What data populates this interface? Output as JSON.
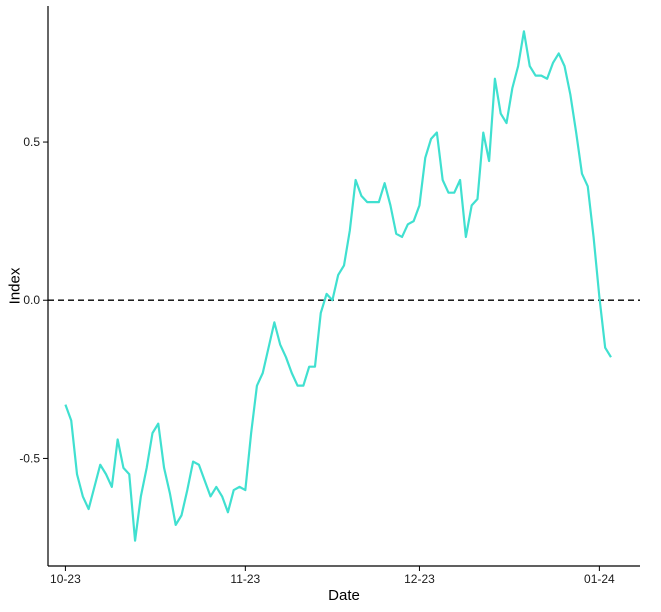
{
  "chart_data": {
    "type": "line",
    "title": "",
    "xlabel": "Date",
    "ylabel": "Index",
    "x_ticks": [
      {
        "value": "2023-10-01",
        "label": "10-23"
      },
      {
        "value": "2023-11-01",
        "label": "11-23"
      },
      {
        "value": "2023-12-01",
        "label": "12-23"
      },
      {
        "value": "2024-01-01",
        "label": "01-24"
      }
    ],
    "y_ticks": [
      {
        "value": -0.5,
        "label": "-0.5"
      },
      {
        "value": 0.0,
        "label": "0.0"
      },
      {
        "value": 0.5,
        "label": "0.5"
      }
    ],
    "xlim": [
      "2023-09-28",
      "2024-01-08"
    ],
    "ylim": [
      -0.84,
      0.93
    ],
    "grid": false,
    "reference_line": {
      "y": 0.0,
      "style": "dashed"
    },
    "series": [
      {
        "color": "#40E0D0",
        "points": [
          [
            "2023-10-01",
            -0.33
          ],
          [
            "2023-10-02",
            -0.38
          ],
          [
            "2023-10-03",
            -0.55
          ],
          [
            "2023-10-04",
            -0.62
          ],
          [
            "2023-10-05",
            -0.66
          ],
          [
            "2023-10-06",
            -0.59
          ],
          [
            "2023-10-07",
            -0.52
          ],
          [
            "2023-10-08",
            -0.55
          ],
          [
            "2023-10-09",
            -0.59
          ],
          [
            "2023-10-10",
            -0.44
          ],
          [
            "2023-10-11",
            -0.53
          ],
          [
            "2023-10-12",
            -0.55
          ],
          [
            "2023-10-13",
            -0.76
          ],
          [
            "2023-10-14",
            -0.62
          ],
          [
            "2023-10-15",
            -0.53
          ],
          [
            "2023-10-16",
            -0.42
          ],
          [
            "2023-10-17",
            -0.39
          ],
          [
            "2023-10-18",
            -0.53
          ],
          [
            "2023-10-19",
            -0.61
          ],
          [
            "2023-10-20",
            -0.71
          ],
          [
            "2023-10-21",
            -0.68
          ],
          [
            "2023-10-22",
            -0.6
          ],
          [
            "2023-10-23",
            -0.51
          ],
          [
            "2023-10-24",
            -0.52
          ],
          [
            "2023-10-25",
            -0.57
          ],
          [
            "2023-10-26",
            -0.62
          ],
          [
            "2023-10-27",
            -0.59
          ],
          [
            "2023-10-28",
            -0.62
          ],
          [
            "2023-10-29",
            -0.67
          ],
          [
            "2023-10-30",
            -0.6
          ],
          [
            "2023-10-31",
            -0.59
          ],
          [
            "2023-11-01",
            -0.6
          ],
          [
            "2023-11-02",
            -0.42
          ],
          [
            "2023-11-03",
            -0.27
          ],
          [
            "2023-11-04",
            -0.23
          ],
          [
            "2023-11-05",
            -0.15
          ],
          [
            "2023-11-06",
            -0.07
          ],
          [
            "2023-11-07",
            -0.14
          ],
          [
            "2023-11-08",
            -0.18
          ],
          [
            "2023-11-09",
            -0.23
          ],
          [
            "2023-11-10",
            -0.27
          ],
          [
            "2023-11-11",
            -0.27
          ],
          [
            "2023-11-12",
            -0.21
          ],
          [
            "2023-11-13",
            -0.21
          ],
          [
            "2023-11-14",
            -0.04
          ],
          [
            "2023-11-15",
            0.02
          ],
          [
            "2023-11-16",
            0.0
          ],
          [
            "2023-11-17",
            0.08
          ],
          [
            "2023-11-18",
            0.11
          ],
          [
            "2023-11-19",
            0.22
          ],
          [
            "2023-11-20",
            0.38
          ],
          [
            "2023-11-21",
            0.33
          ],
          [
            "2023-11-22",
            0.31
          ],
          [
            "2023-11-23",
            0.31
          ],
          [
            "2023-11-24",
            0.31
          ],
          [
            "2023-11-25",
            0.37
          ],
          [
            "2023-11-26",
            0.3
          ],
          [
            "2023-11-27",
            0.21
          ],
          [
            "2023-11-28",
            0.2
          ],
          [
            "2023-11-29",
            0.24
          ],
          [
            "2023-11-30",
            0.25
          ],
          [
            "2023-12-01",
            0.3
          ],
          [
            "2023-12-02",
            0.45
          ],
          [
            "2023-12-03",
            0.51
          ],
          [
            "2023-12-04",
            0.53
          ],
          [
            "2023-12-05",
            0.38
          ],
          [
            "2023-12-06",
            0.34
          ],
          [
            "2023-12-07",
            0.34
          ],
          [
            "2023-12-08",
            0.38
          ],
          [
            "2023-12-09",
            0.2
          ],
          [
            "2023-12-10",
            0.3
          ],
          [
            "2023-12-11",
            0.32
          ],
          [
            "2023-12-12",
            0.53
          ],
          [
            "2023-12-13",
            0.44
          ],
          [
            "2023-12-14",
            0.7
          ],
          [
            "2023-12-15",
            0.59
          ],
          [
            "2023-12-16",
            0.56
          ],
          [
            "2023-12-17",
            0.67
          ],
          [
            "2023-12-18",
            0.74
          ],
          [
            "2023-12-19",
            0.85
          ],
          [
            "2023-12-20",
            0.74
          ],
          [
            "2023-12-21",
            0.71
          ],
          [
            "2023-12-22",
            0.71
          ],
          [
            "2023-12-23",
            0.7
          ],
          [
            "2023-12-24",
            0.75
          ],
          [
            "2023-12-25",
            0.78
          ],
          [
            "2023-12-26",
            0.74
          ],
          [
            "2023-12-27",
            0.65
          ],
          [
            "2023-12-28",
            0.53
          ],
          [
            "2023-12-29",
            0.4
          ],
          [
            "2023-12-30",
            0.36
          ],
          [
            "2023-12-31",
            0.2
          ],
          [
            "2024-01-01",
            0.01
          ],
          [
            "2024-01-02",
            -0.15
          ],
          [
            "2024-01-03",
            -0.18
          ]
        ]
      }
    ]
  }
}
